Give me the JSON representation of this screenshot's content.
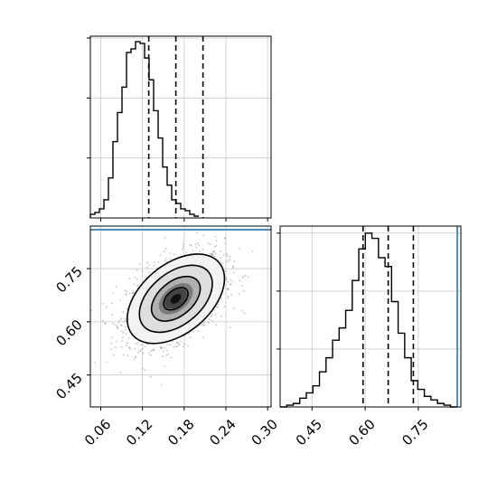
{
  "chart_data": [
    {
      "type": "histogram",
      "panel": "top-left",
      "variable_index": 0,
      "xlim": [
        0.045,
        0.305
      ],
      "bins_start": 0.045,
      "bin_width": 0.0065,
      "counts": [
        2,
        3,
        5,
        10,
        22,
        42,
        58,
        72,
        91,
        93,
        97,
        96,
        88,
        76,
        59,
        44,
        28,
        18,
        10,
        8,
        5,
        4,
        2,
        1
      ],
      "ylim": [
        0,
        100
      ],
      "quantile_lines": [
        0.129,
        0.168,
        0.207
      ],
      "grid": true,
      "x_tick_labels_shown": false
    },
    {
      "type": "heatmap",
      "panel": "bottom-left",
      "variables": [
        0,
        1
      ],
      "xlim": [
        0.045,
        0.305
      ],
      "ylim": [
        0.36,
        0.87
      ],
      "center": [
        0.168,
        0.665
      ],
      "std": [
        0.035,
        0.063
      ],
      "correlation": 0.45,
      "contour_levels_sigma": [
        0.5,
        1.0,
        1.5,
        2.0
      ],
      "truth_line_y": 0.86,
      "x_ticks": [
        "0.06",
        "0.12",
        "0.18",
        "0.24",
        "0.30"
      ],
      "x_tick_values": [
        0.06,
        0.12,
        0.18,
        0.24,
        0.3
      ],
      "y_ticks": [
        "0.45",
        "0.60",
        "0.75"
      ],
      "y_tick_values": [
        0.45,
        0.6,
        0.75
      ],
      "grid": true
    },
    {
      "type": "histogram",
      "panel": "bottom-right",
      "variable_index": 1,
      "xlim": [
        0.36,
        0.87
      ],
      "bins_start": 0.36,
      "bin_width": 0.0185,
      "counts": [
        0,
        1,
        2,
        5,
        8,
        12,
        20,
        28,
        38,
        45,
        55,
        72,
        90,
        99,
        96,
        85,
        80,
        60,
        42,
        28,
        15,
        10,
        6,
        4,
        2,
        1,
        0
      ],
      "ylim": [
        0,
        103
      ],
      "quantile_lines": [
        0.594,
        0.665,
        0.736
      ],
      "truth_line_x": 0.86,
      "x_ticks": [
        "0.45",
        "0.60",
        "0.75"
      ],
      "x_tick_values": [
        0.45,
        0.6,
        0.75
      ],
      "grid": true
    }
  ],
  "colors": {
    "truth": "#4682b4",
    "line": "#000000",
    "grid": "#c8c8c8",
    "points": "#7a7a7a"
  }
}
